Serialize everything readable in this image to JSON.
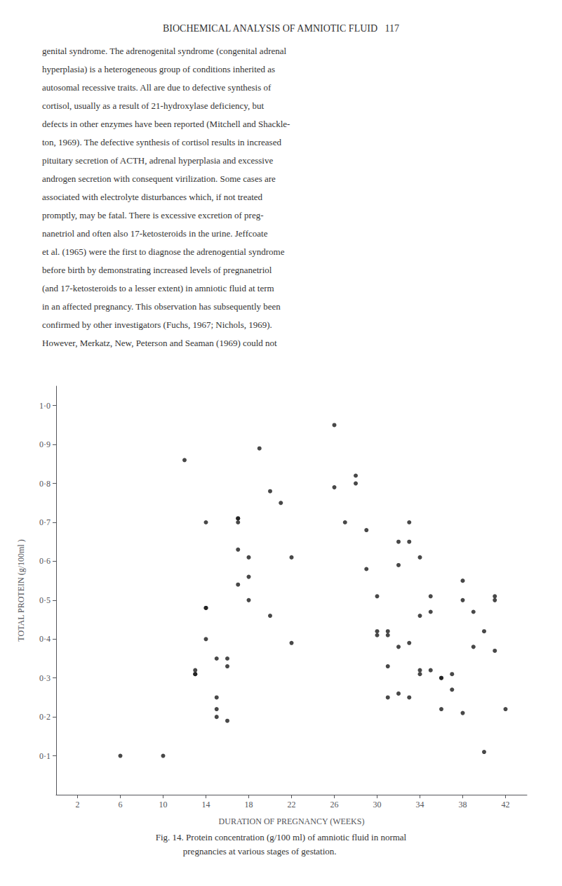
{
  "chart_data": {
    "type": "scatter",
    "title": "BIOCHEMICAL ANALYSIS OF AMNIOTIC FLUID   117",
    "annotations": [
      "genital syndrome. The adrenogenital syndrome (congenital adrenal",
      "hyperplasia) is a heterogeneous group of conditions inherited as",
      "autosomal recessive traits. All are due to defective synthesis of",
      "cortisol, usually as a result of 21-hydroxylase deficiency, but",
      "defects in other enzymes have been reported (Mitchell and Shackle-",
      "ton, 1969). The defective synthesis of cortisol results in increased",
      "pituitary secretion of ACTH, adrenal hyperplasia and excessive",
      "androgen secretion with consequent virilization. Some cases are",
      "associated with electrolyte disturbances which, if not treated",
      "promptly, may be fatal. There is excessive excretion of preg-",
      "nanetriol and often also 17-ketosteroids in the urine. Jeffcoate",
      "et al. (1965) were the first to diagnose the adrenogential syndrome",
      "before birth by demonstrating increased levels of pregnanetriol",
      "(and 17-ketosteroids to a lesser extent) in amniotic fluid at term",
      "in an affected pregnancy. This observation has subsequently been",
      "confirmed by other investigators (Fuchs, 1967; Nichols, 1969).",
      "However, Merkatz, New, Peterson and Seaman (1969) could not"
    ],
    "caption": "Fig. 14. Protein concentration (g/100 ml) of amniotic fluid in normal\n            pregnancies at various stages of gestation.",
    "x_label": "DURATION OF PREGNANCY (WEEKS)",
    "y_label": "TOTAL PROTEIN (g/100ml )",
    "x": [
      6,
      10,
      12,
      13,
      13,
      13,
      14,
      14,
      14,
      14,
      15,
      15,
      15,
      15,
      16,
      16,
      16,
      17,
      17,
      17,
      17,
      17,
      18,
      18,
      18,
      19,
      20,
      20,
      21,
      22,
      22,
      26,
      26,
      27,
      28,
      28,
      29,
      29,
      30,
      30,
      30,
      31,
      31,
      31,
      31,
      32,
      32,
      32,
      32,
      33,
      33,
      33,
      33,
      34,
      34,
      34,
      34,
      35,
      35,
      35,
      36,
      36,
      36,
      37,
      37,
      38,
      38,
      38,
      39,
      39,
      40,
      40,
      41,
      41,
      41,
      42
    ],
    "values": [
      0.1,
      0.1,
      0.86,
      0.31,
      0.31,
      0.32,
      0.7,
      0.48,
      0.48,
      0.4,
      0.35,
      0.25,
      0.22,
      0.2,
      0.35,
      0.33,
      0.19,
      0.71,
      0.71,
      0.7,
      0.63,
      0.54,
      0.61,
      0.56,
      0.5,
      0.89,
      0.78,
      0.46,
      0.75,
      0.61,
      0.39,
      0.95,
      0.79,
      0.7,
      0.82,
      0.8,
      0.58,
      0.68,
      0.51,
      0.41,
      0.42,
      0.41,
      0.42,
      0.33,
      0.25,
      0.65,
      0.59,
      0.38,
      0.26,
      0.7,
      0.65,
      0.39,
      0.25,
      0.61,
      0.46,
      0.32,
      0.31,
      0.51,
      0.47,
      0.32,
      0.3,
      0.3,
      0.22,
      0.31,
      0.27,
      0.55,
      0.5,
      0.21,
      0.47,
      0.38,
      0.42,
      0.11,
      0.51,
      0.5,
      0.37,
      0.22
    ],
    "color": "#1a1a1a",
    "xlim": [
      0,
      44
    ],
    "ylim": [
      0,
      1.05
    ],
    "xticks": [
      2,
      6,
      10,
      14,
      18,
      22,
      26,
      30,
      34,
      38,
      42
    ],
    "yticks": [
      {
        "value": 0.1,
        "label": "0·1"
      },
      {
        "value": 0.2,
        "label": "0·2"
      },
      {
        "value": 0.3,
        "label": "0·3"
      },
      {
        "value": 0.4,
        "label": "0·4"
      },
      {
        "value": 0.5,
        "label": "0·5"
      },
      {
        "value": 0.6,
        "label": "0·6"
      },
      {
        "value": 0.7,
        "label": "0·7"
      },
      {
        "value": 0.8,
        "label": "0·8"
      },
      {
        "value": 0.9,
        "label": "0·9"
      },
      {
        "value": 1.0,
        "label": "1·0"
      }
    ],
    "grid": false
  }
}
